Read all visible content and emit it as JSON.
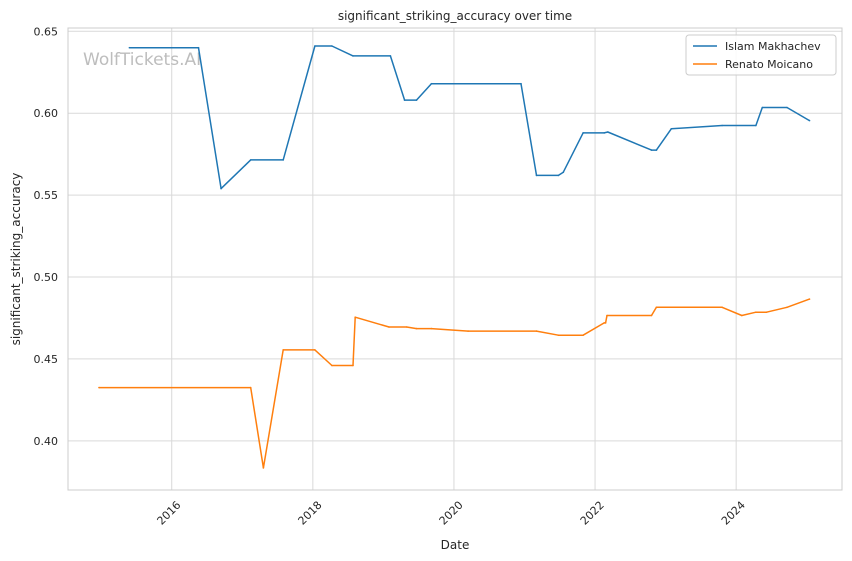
{
  "chart_data": {
    "type": "line",
    "title": "significant_striking_accuracy over time",
    "xlabel": "Date",
    "ylabel": "significant_striking_accuracy",
    "watermark": "WolfTickets.AI",
    "xlim": [
      2014.53,
      2025.5
    ],
    "ylim": [
      0.37,
      0.652
    ],
    "x_ticks": [
      2016,
      2018,
      2020,
      2022,
      2024
    ],
    "x_tick_labels": [
      "2016",
      "2018",
      "2020",
      "2022",
      "2024"
    ],
    "y_ticks": [
      0.4,
      0.45,
      0.5,
      0.55,
      0.6,
      0.65
    ],
    "y_tick_labels": [
      "0.40",
      "0.45",
      "0.50",
      "0.55",
      "0.60",
      "0.65"
    ],
    "grid": true,
    "legend_position": "top-right",
    "series": [
      {
        "name": "Islam Makhachev",
        "color": "#1f77b4",
        "x": [
          2015.4,
          2016.38,
          2016.7,
          2017.12,
          2017.58,
          2018.03,
          2018.27,
          2018.57,
          2019.1,
          2019.3,
          2019.47,
          2019.68,
          2020.95,
          2021.17,
          2021.48,
          2021.55,
          2021.83,
          2022.13,
          2022.18,
          2022.8,
          2022.87,
          2023.08,
          2023.8,
          2024.28,
          2024.37,
          2024.72,
          2025.04
        ],
        "y": [
          0.64,
          0.64,
          0.554,
          0.5715,
          0.5715,
          0.641,
          0.641,
          0.635,
          0.635,
          0.608,
          0.608,
          0.618,
          0.618,
          0.562,
          0.562,
          0.564,
          0.588,
          0.588,
          0.5885,
          0.5775,
          0.5775,
          0.5905,
          0.5925,
          0.5925,
          0.6035,
          0.6035,
          0.5955
        ]
      },
      {
        "name": "Renato Moicano",
        "color": "#ff7f0e",
        "x": [
          2014.97,
          2017.12,
          2017.3,
          2017.58,
          2018.03,
          2018.27,
          2018.57,
          2018.6,
          2019.08,
          2019.33,
          2019.47,
          2019.68,
          2020.2,
          2021.17,
          2021.48,
          2021.83,
          2022.13,
          2022.15,
          2022.17,
          2022.8,
          2022.87,
          2023.8,
          2024.08,
          2024.28,
          2024.43,
          2024.72,
          2025.04
        ],
        "y": [
          0.4325,
          0.4325,
          0.3835,
          0.4555,
          0.4555,
          0.446,
          0.446,
          0.4755,
          0.4695,
          0.4695,
          0.4685,
          0.4685,
          0.467,
          0.467,
          0.4645,
          0.4645,
          0.472,
          0.472,
          0.4765,
          0.4765,
          0.4815,
          0.4815,
          0.4765,
          0.4785,
          0.4785,
          0.4815,
          0.4865
        ]
      }
    ]
  }
}
